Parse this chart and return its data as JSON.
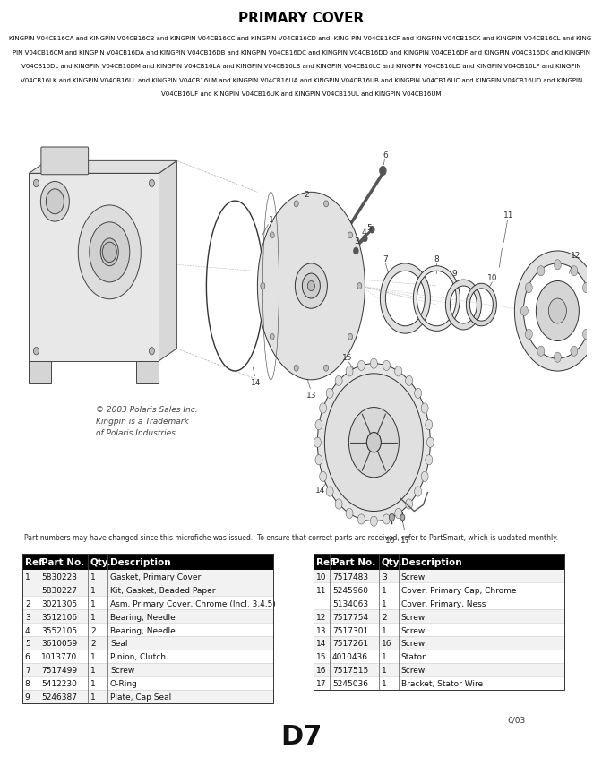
{
  "title": "PRIMARY COVER",
  "subtitle_lines": [
    "KINGPIN V04CB16CA and KINGPIN V04CB16CB and KINGPIN V04CB16CC and KINGPIN V04CB16CD and  KING PIN V04CB16CF and KINGPIN V04CB16CK and KINGPIN V04CB16CL and KING-",
    "PIN V04CB16CM and KINGPIN V04CB16DA and KINGPIN V04CB16DB and KINGPIN V04CB16DC and KINGPIN V04CB16DD and KINGPIN V04CB16DF and KINGPIN V04CB16DK and KINGPIN",
    "V04CB16DL and KINGPIN V04CB16DM and KINGPIN V04CB16LA and KINGPIN V04CB16LB and KINGPIN V04CB16LC and KINGPIN V04CB16LD and KINGPIN V04CB16LF and KINGPIN",
    "V04CB16LK and KINGPIN V04CB16LL and KINGPIN V04CB16LM and KINGPIN V04CB16UA and KINGPIN V04CB16UB and KINGPIN V04CB16UC and KINGPIN V04CB16UD and KINGPIN",
    "V04CB16UF and KINGPIN V04CB16UK and KINGPIN V04CB16UL and KINGPIN V04CB16UM"
  ],
  "copyright_text": "© 2003 Polaris Sales Inc.\nKingpin is a Trademark\nof Polaris Industries",
  "footer_note": "Part numbers may have changed since this microfiche was issued.  To ensure that correct parts are received, refer to PartSmart, which is updated monthly.",
  "page_id": "6/03",
  "page_label": "D7",
  "table_header": [
    "Ref.",
    "Part No.",
    "Qty.",
    "Description"
  ],
  "table_left": [
    [
      "1",
      "5830223\n5830227",
      "1\n1",
      "Gasket, Primary Cover\nKit, Gasket, Beaded Paper"
    ],
    [
      "2",
      "3021305",
      "1",
      "Asm, Primary Cover, Chrome (Incl. 3,4,5)"
    ],
    [
      "3",
      "3512106",
      "1",
      "Bearing, Needle"
    ],
    [
      "4",
      "3552105",
      "2",
      "Bearing, Needle"
    ],
    [
      "5",
      "3610059",
      "2",
      "Seal"
    ],
    [
      "6",
      "1013770",
      "1",
      "Pinion, Clutch"
    ],
    [
      "7",
      "7517499",
      "1",
      "Screw"
    ],
    [
      "8",
      "5412230",
      "1",
      "O-Ring"
    ],
    [
      "9",
      "5246387",
      "1",
      "Plate, Cap Seal"
    ]
  ],
  "table_right": [
    [
      "10",
      "7517483",
      "3",
      "Screw"
    ],
    [
      "11",
      "5245960\n5134063",
      "1\n1",
      "Cover, Primary Cap, Chrome\nCover, Primary, Ness"
    ],
    [
      "12",
      "7517754",
      "2",
      "Screw"
    ],
    [
      "13",
      "7517301",
      "1",
      "Screw"
    ],
    [
      "14",
      "7517261",
      "16",
      "Screw"
    ],
    [
      "15",
      "4010436",
      "1",
      "Stator"
    ],
    [
      "16",
      "7517515",
      "1",
      "Screw"
    ],
    [
      "17",
      "5245036",
      "1",
      "Bracket, Stator Wire"
    ]
  ],
  "bg_color": "#ffffff",
  "title_font_size": 11,
  "subtitle_font_size": 5.0,
  "table_font_size": 6.5,
  "header_font_size": 7.5,
  "note_font_size": 5.5
}
